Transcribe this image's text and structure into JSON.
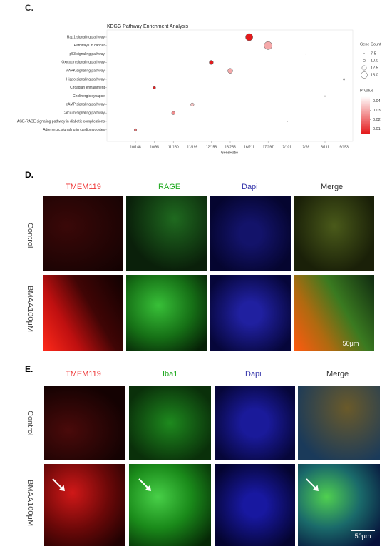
{
  "chart_data": {
    "type": "bubble",
    "label": "C.",
    "title": "KEGG Pathway Enrichment Analysis",
    "x_label": "GeneRatio",
    "x_categories": [
      "10/148",
      "10/95",
      "11/180",
      "11/199",
      "12/158",
      "13/255",
      "16/211",
      "17/397",
      "7/101",
      "7/69",
      "8/111",
      "9/153"
    ],
    "y": [
      "Rap1 signaling pathway",
      "Pathways in cancer",
      "p53 signaling pathway",
      "Oxytocin signaling pathway",
      "MAPK signaling pathway",
      "Hippo signaling pathway",
      "Circadian entrainment",
      "Cholinergic synapse",
      "cAMP signaling pathway",
      "Calcium signaling pathway",
      "AGE-RAGE signaling pathway in diabetic complications",
      "Adrenergic signaling in cardiomyocytes"
    ],
    "x": [
      "16/211",
      "17/397",
      "7/69",
      "12/158",
      "13/255",
      "9/153",
      "10/95",
      "8/111",
      "11/199",
      "11/180",
      "7/101",
      "10/148"
    ],
    "size": [
      16,
      17,
      7,
      12,
      13,
      9,
      10,
      8,
      11,
      11,
      7,
      10
    ],
    "p_value": [
      0.005,
      0.03,
      0.005,
      0.004,
      0.03,
      0.045,
      0.006,
      0.02,
      0.035,
      0.025,
      0.03,
      0.02
    ],
    "size_title": "Gene Count",
    "size_ticks": [
      {
        "value": 7.5,
        "label": "7.5"
      },
      {
        "value": 10,
        "label": "10.0"
      },
      {
        "value": 12.5,
        "label": "12.5"
      },
      {
        "value": 15,
        "label": "15.0"
      }
    ],
    "color_title": "P-Value",
    "color_lim": [
      0.005,
      0.045
    ],
    "color_ticks": [
      0.04,
      0.03,
      0.02,
      0.01
    ],
    "color_low": "#e41a1c",
    "color_high": "#ffffff"
  },
  "panel_d": {
    "label": "D.",
    "columns": [
      "TMEM119",
      "RAGE",
      "Dapi",
      "Merge"
    ],
    "rows": [
      "Control",
      "BMAA100μM"
    ],
    "scale_bar": "50μm"
  },
  "panel_e": {
    "label": "E.",
    "columns": [
      "TMEM119",
      "Iba1",
      "Dapi",
      "Merge"
    ],
    "rows": [
      "Control",
      "BMAA100μM"
    ],
    "scale_bar": "50μm"
  }
}
